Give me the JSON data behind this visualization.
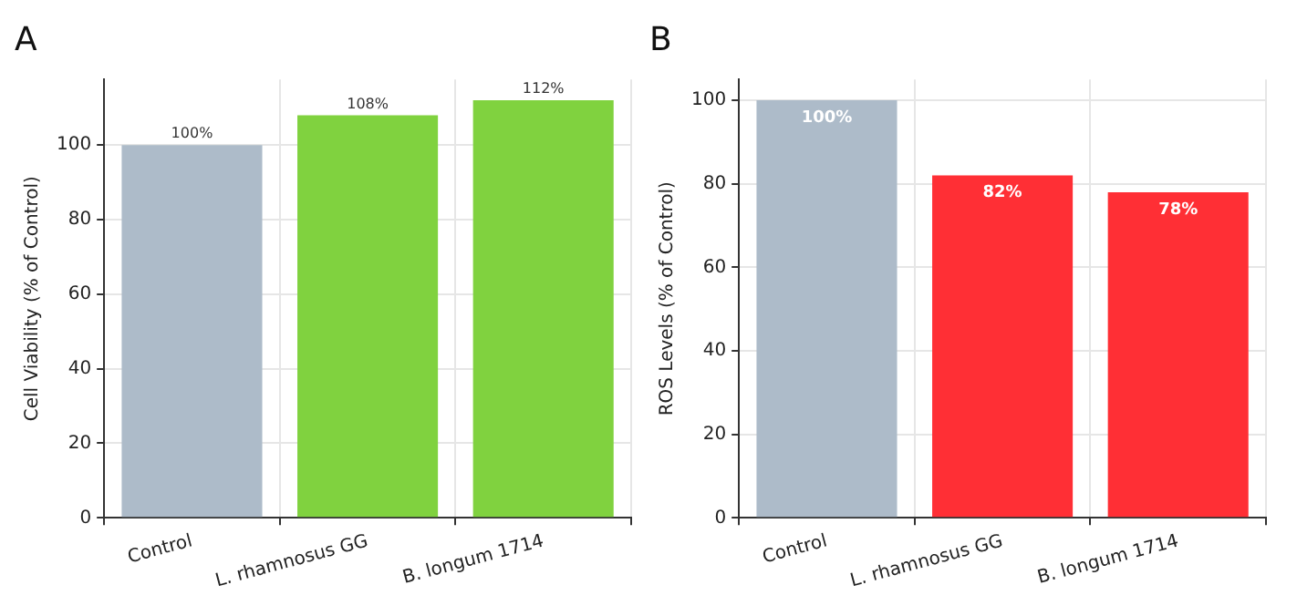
{
  "chart_data": [
    {
      "type": "bar",
      "title": "A",
      "ylabel": "Cell Viability (% of Control)",
      "categories": [
        "Control",
        "L. rhamnosus GG",
        "B. longum 1714"
      ],
      "values": [
        100,
        108,
        112
      ],
      "colors": [
        "#adbbc9",
        "#80d23f",
        "#80d23f"
      ],
      "value_labels": [
        "100%",
        "108%",
        "112%"
      ],
      "ylim": [
        0,
        117.6
      ],
      "yticks": [
        0,
        20,
        40,
        60,
        80,
        100
      ],
      "grid": true
    },
    {
      "type": "bar",
      "title": "B",
      "ylabel": "ROS Levels (% of Control)",
      "categories": [
        "Control",
        "L. rhamnosus GG",
        "B. longum 1714"
      ],
      "values": [
        100,
        82,
        78
      ],
      "colors": [
        "#adbbc9",
        "#ff2f35",
        "#ff2f35"
      ],
      "value_labels": [
        "100%",
        "82%",
        "78%"
      ],
      "ylim": [
        0,
        105
      ],
      "yticks": [
        0,
        20,
        40,
        60,
        80,
        100
      ],
      "grid": true
    }
  ]
}
